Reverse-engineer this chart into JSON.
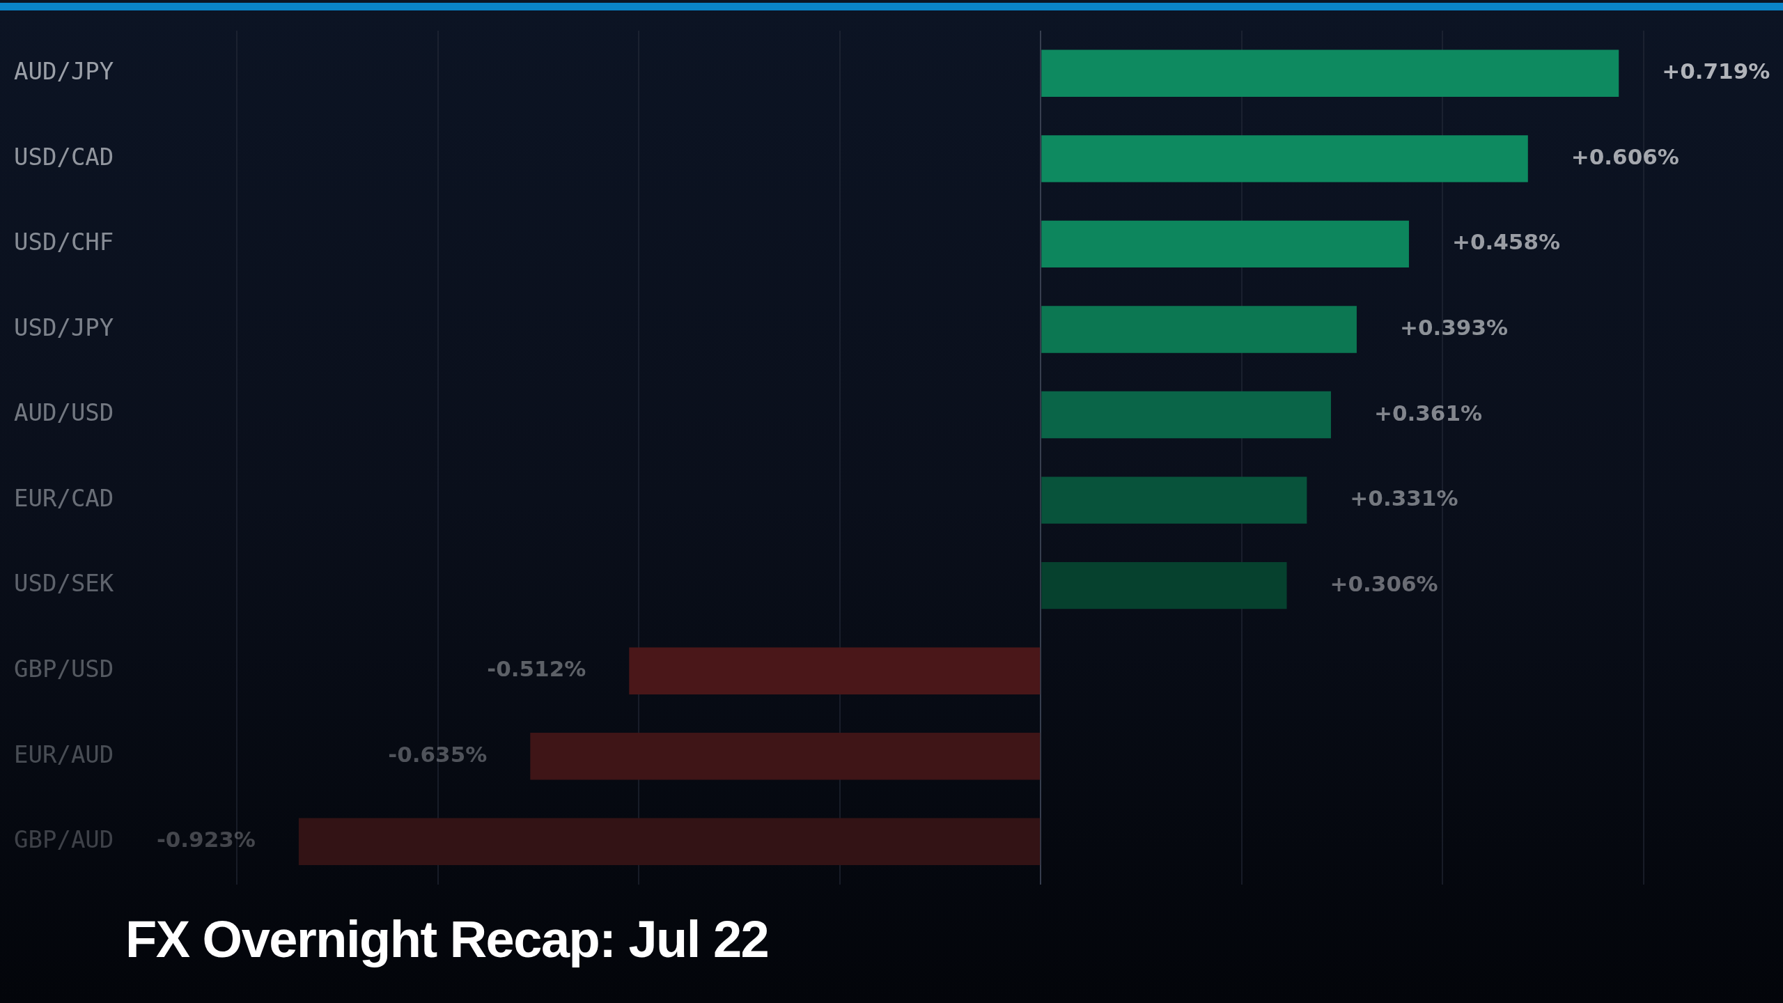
{
  "chart_data": {
    "type": "bar",
    "orientation": "horizontal",
    "title": "FX Overnight Recap: Jul 22",
    "categories": [
      "AUD/JPY",
      "USD/CAD",
      "USD/CHF",
      "USD/JPY",
      "AUD/USD",
      "EUR/CAD",
      "USD/SEK",
      "GBP/USD",
      "EUR/AUD",
      "GBP/AUD"
    ],
    "values": [
      0.719,
      0.606,
      0.458,
      0.393,
      0.361,
      0.331,
      0.306,
      -0.512,
      -0.635,
      -0.923
    ],
    "colors": [
      "#0e8a60",
      "#0e8a60",
      "#0d865d",
      "#0c7752",
      "#0a6548",
      "#08533b",
      "#06412e",
      "#4a1719",
      "#3f1517",
      "#331315"
    ],
    "value_labels": [
      "+0.719%",
      "+0.606%",
      "+0.458%",
      "+0.393%",
      "+0.361%",
      "+0.331%",
      "+0.306%",
      "-0.512%",
      "-0.635%",
      "-0.923%"
    ],
    "xticks": [
      {
        "value": -1,
        "label": null
      },
      {
        "value": -0.75,
        "label": null
      },
      {
        "value": -0.5,
        "label": null
      },
      {
        "value": -0.25,
        "label": null
      },
      {
        "value": 0,
        "label": null
      },
      {
        "value": 0.25,
        "label": null
      },
      {
        "value": 0.5,
        "label": null
      },
      {
        "value": 0.75,
        "label": null
      }
    ],
    "grid": "x",
    "tick_labels": "y"
  }
}
